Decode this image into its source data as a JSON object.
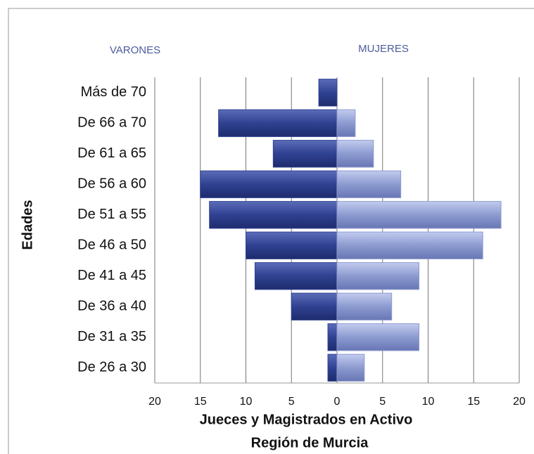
{
  "chart_data": {
    "type": "pyramid",
    "title": [
      "Jueces y Magistrados  en Activo",
      "Región de Murcia"
    ],
    "y_label": "Edades",
    "left_label": "VARONES",
    "right_label": "MUJERES",
    "categories": [
      "Más de 70",
      "De 66 a 70",
      "De 61 a 65",
      "De 56 a 60",
      "De 51 a 55",
      "De 46 a 50",
      "De 41 a 45",
      "De 36 a 40",
      "De 31 a 35",
      "De 26 a 30"
    ],
    "series": [
      {
        "name": "VARONES",
        "color": "#2f4191",
        "values": [
          -2,
          -13,
          -7,
          -15,
          -14,
          -10,
          -9,
          -5,
          -1,
          -1
        ]
      },
      {
        "name": "MUJERES",
        "color": "#8c9ad0",
        "values": [
          0,
          2,
          4,
          7,
          18,
          16,
          9,
          6,
          9,
          3
        ]
      }
    ],
    "xlim": [
      -20,
      20
    ],
    "xticks": [
      {
        "value": -20,
        "label": "20"
      },
      {
        "value": -15,
        "label": "15"
      },
      {
        "value": -10,
        "label": "10"
      },
      {
        "value": -5,
        "label": "5"
      },
      0,
      5,
      10,
      15,
      20
    ],
    "grid": true
  }
}
